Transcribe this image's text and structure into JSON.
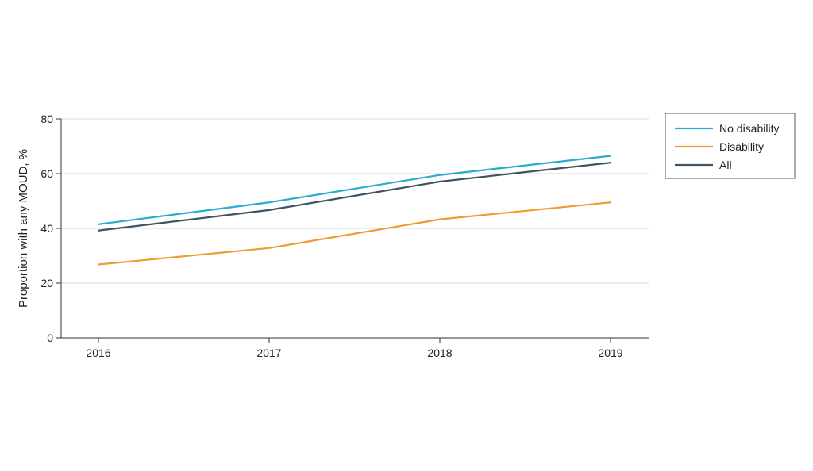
{
  "chart_data": {
    "type": "line",
    "title": "",
    "xlabel": "",
    "ylabel": "Proportion with any MOUD, %",
    "x": [
      "2016",
      "2017",
      "2018",
      "2019"
    ],
    "yticks": [
      "0",
      "20",
      "40",
      "60",
      "80"
    ],
    "ylim": [
      0,
      80
    ],
    "grid": true,
    "legend_position": "right",
    "series": [
      {
        "name": "No disability",
        "color": "#2aabd2",
        "values": [
          41.5,
          49.5,
          59.5,
          66.5
        ]
      },
      {
        "name": "Disability",
        "color": "#ee9b33",
        "values": [
          26.8,
          32.8,
          43.3,
          49.5
        ]
      },
      {
        "name": "All",
        "color": "#3d5563",
        "values": [
          39.2,
          46.7,
          57.1,
          64.0
        ]
      }
    ]
  }
}
